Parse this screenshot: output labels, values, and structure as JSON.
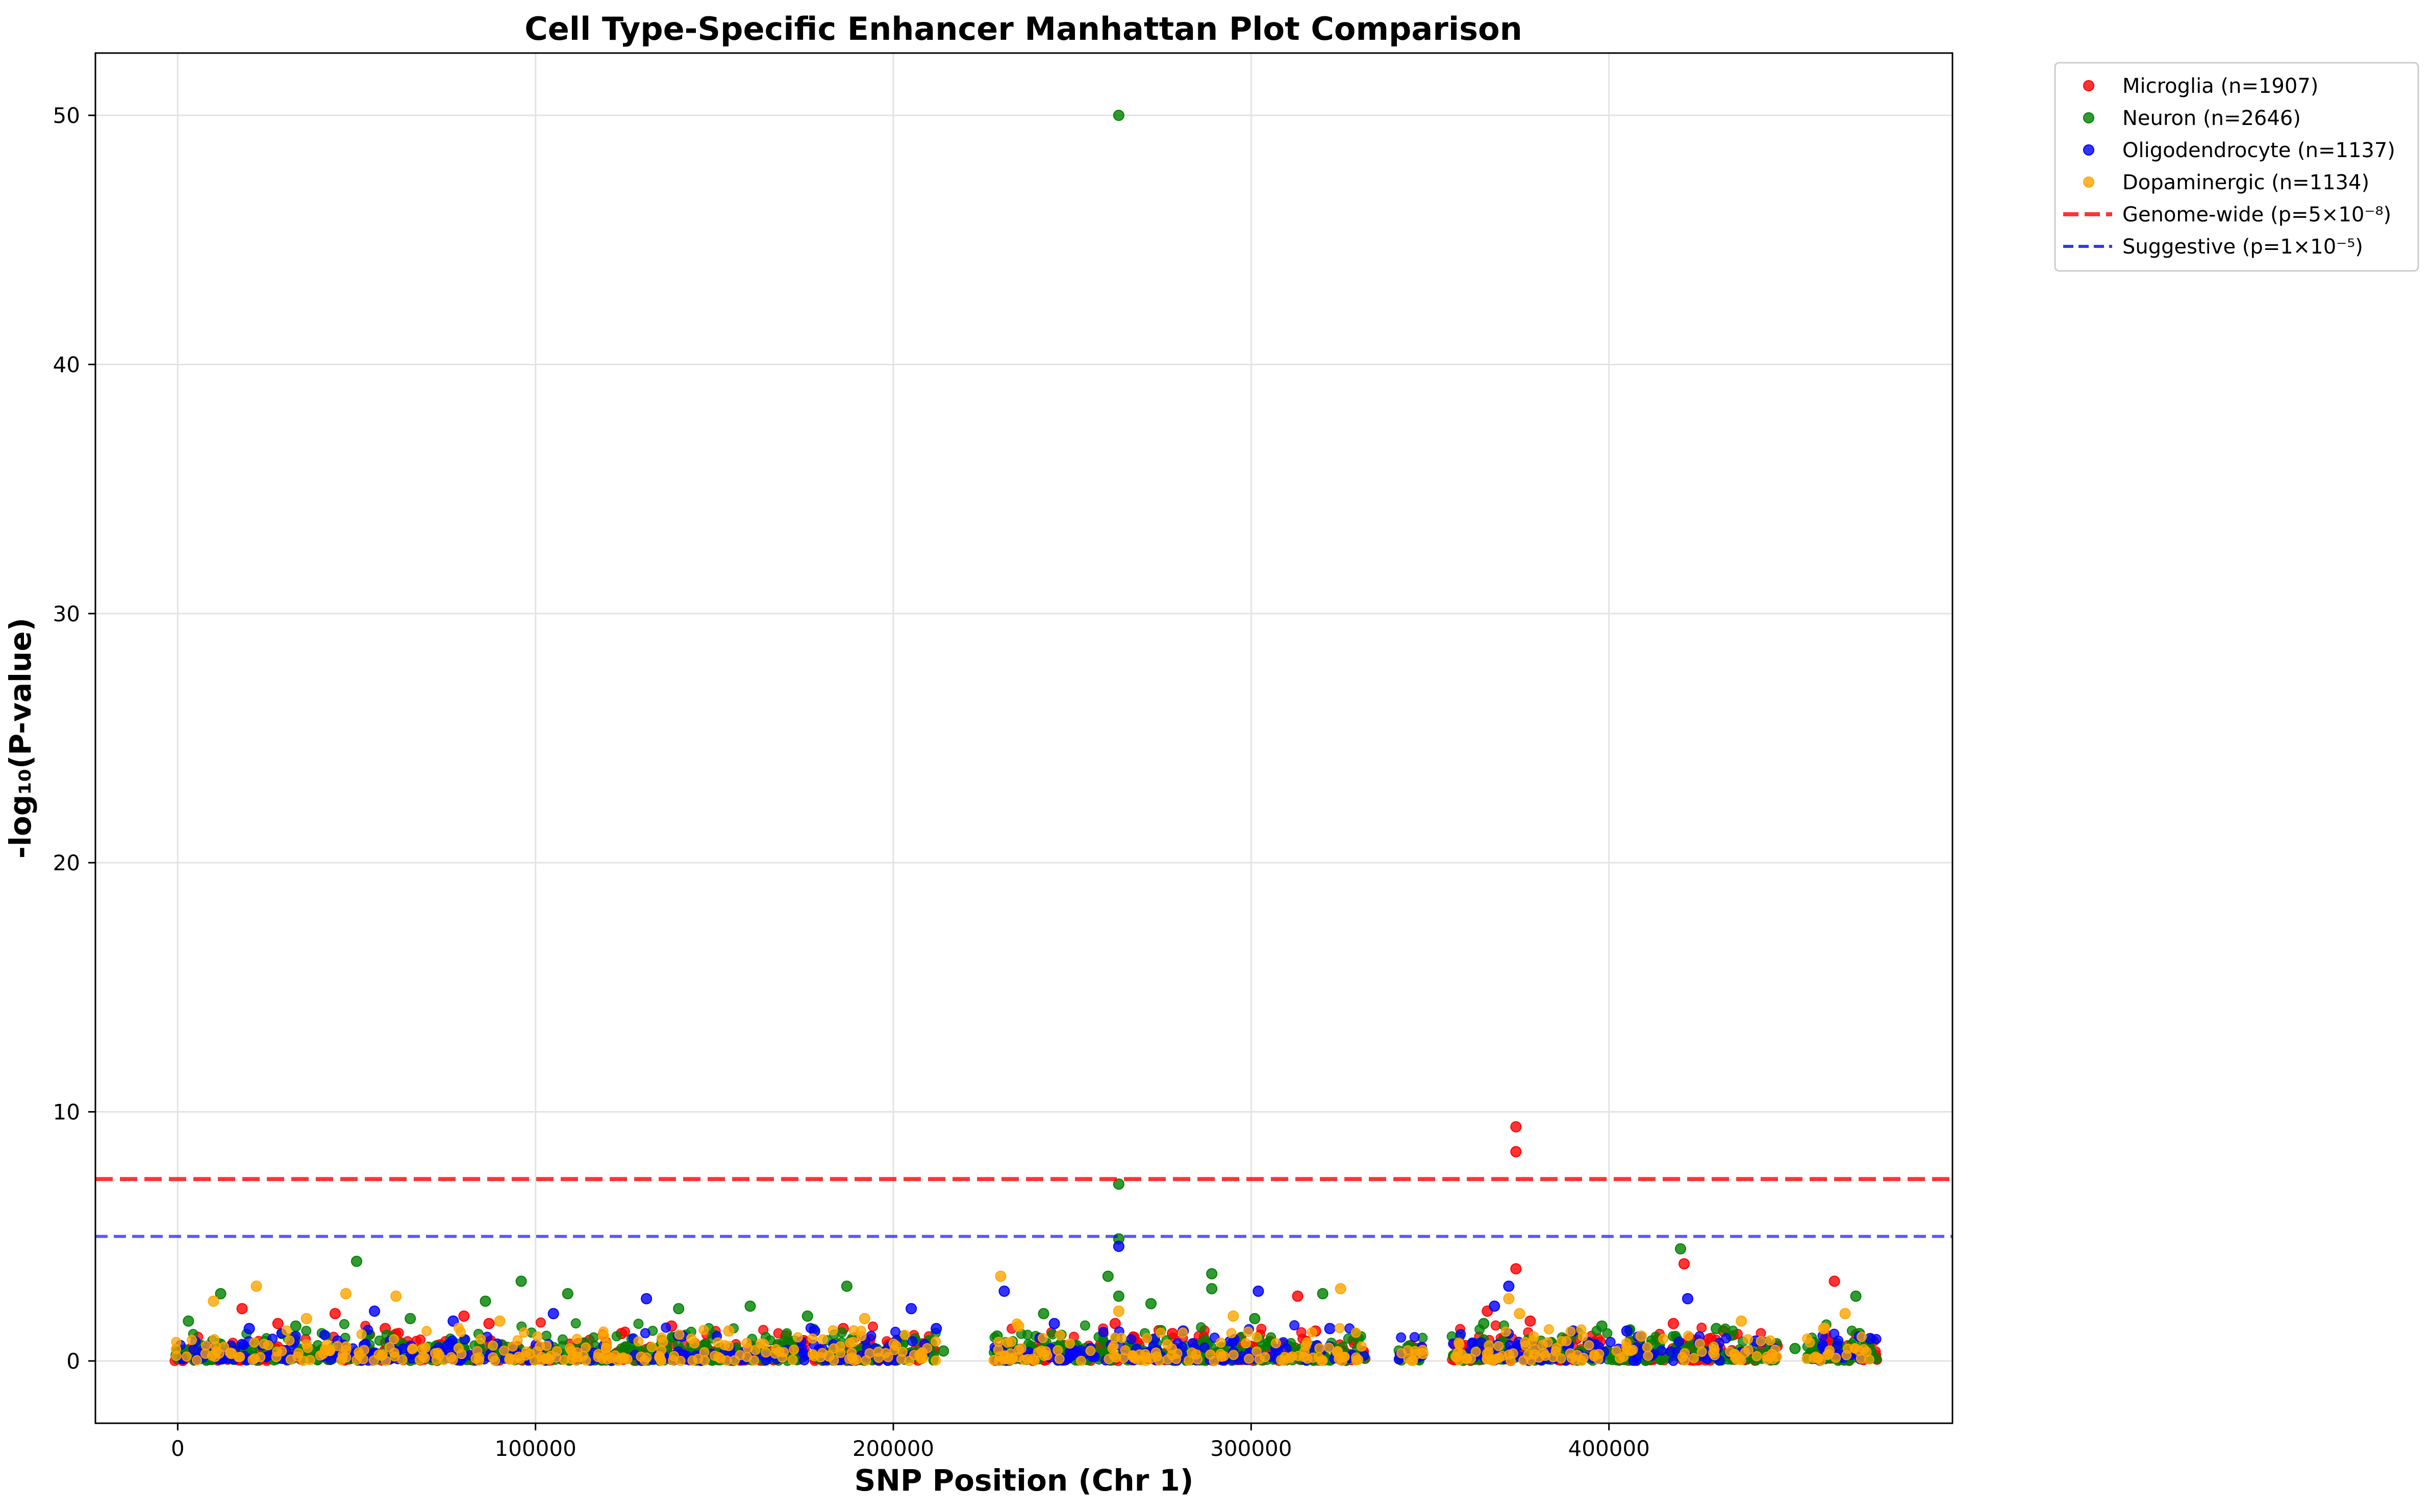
{
  "chart_data": {
    "type": "scatter",
    "title": "Cell Type-Specific Enhancer Manhattan Plot Comparison",
    "xlabel": "SNP Position (Chr 1)",
    "ylabel": "-log₁₀(P-value)",
    "xlim": [
      -23000,
      496000
    ],
    "ylim": [
      -2.5,
      52.5
    ],
    "xticks": [
      0,
      100000,
      200000,
      300000,
      400000
    ],
    "yticks": [
      0,
      10,
      20,
      30,
      40,
      50
    ],
    "grid": true,
    "legend_position": "outside-top-right",
    "series": [
      {
        "name": "Microglia (n=1907)",
        "color": "#ff0000",
        "count": 1907,
        "points": [
          [
            374000,
            9.4
          ],
          [
            374000,
            8.4
          ],
          [
            374000,
            3.7
          ],
          [
            313000,
            2.6
          ],
          [
            421000,
            3.9
          ],
          [
            463000,
            3.2
          ],
          [
            18000,
            2.1
          ],
          [
            28000,
            1.5
          ],
          [
            44000,
            1.9
          ],
          [
            58000,
            1.3
          ],
          [
            80000,
            1.8
          ],
          [
            87000,
            1.5
          ],
          [
            112000,
            0.7
          ],
          [
            124000,
            1.1
          ],
          [
            138000,
            1.4
          ],
          [
            170000,
            1.0
          ],
          [
            186000,
            1.3
          ],
          [
            209000,
            0.6
          ],
          [
            243000,
            0.4
          ],
          [
            249000,
            0.6
          ],
          [
            254000,
            0.3
          ],
          [
            262000,
            1.5
          ],
          [
            278000,
            1.1
          ],
          [
            297000,
            0.9
          ],
          [
            318000,
            1.2
          ],
          [
            366000,
            2.0
          ],
          [
            378000,
            1.6
          ],
          [
            391000,
            0.9
          ],
          [
            418000,
            1.5
          ],
          [
            432000,
            1.2
          ],
          [
            447000,
            0.6
          ]
        ]
      },
      {
        "name": "Neuron (n=2646)",
        "color": "#008000",
        "count": 2646,
        "points": [
          [
            263000,
            50.0
          ],
          [
            263000,
            7.1
          ],
          [
            263000,
            4.9
          ],
          [
            263000,
            2.6
          ],
          [
            50000,
            4.0
          ],
          [
            289000,
            3.5
          ],
          [
            289000,
            2.9
          ],
          [
            96000,
            3.2
          ],
          [
            109000,
            2.7
          ],
          [
            12000,
            2.7
          ],
          [
            187000,
            3.0
          ],
          [
            320000,
            2.7
          ],
          [
            420000,
            4.5
          ],
          [
            469000,
            2.6
          ],
          [
            260000,
            3.4
          ],
          [
            242000,
            1.9
          ],
          [
            229000,
            1.0
          ],
          [
            3000,
            1.6
          ],
          [
            33000,
            1.4
          ],
          [
            65000,
            1.7
          ],
          [
            86000,
            2.4
          ],
          [
            140000,
            2.1
          ],
          [
            160000,
            2.2
          ],
          [
            176000,
            1.8
          ],
          [
            214000,
            0.4
          ],
          [
            272000,
            2.3
          ],
          [
            301000,
            1.7
          ],
          [
            330000,
            0.9
          ],
          [
            365000,
            1.5
          ],
          [
            398000,
            1.4
          ],
          [
            430000,
            1.3
          ],
          [
            452000,
            0.5
          ],
          [
            470000,
            1.1
          ]
        ]
      },
      {
        "name": "Oligodendrocyte (n=1137)",
        "color": "#0000ff",
        "count": 1137,
        "points": [
          [
            263000,
            4.6
          ],
          [
            231000,
            2.8
          ],
          [
            302000,
            2.8
          ],
          [
            372000,
            3.0
          ],
          [
            422000,
            2.5
          ],
          [
            20000,
            1.3
          ],
          [
            55000,
            2.0
          ],
          [
            77000,
            1.6
          ],
          [
            105000,
            1.9
          ],
          [
            131000,
            2.5
          ],
          [
            141000,
            1.0
          ],
          [
            178000,
            1.2
          ],
          [
            205000,
            2.1
          ],
          [
            212000,
            1.3
          ],
          [
            245000,
            1.5
          ],
          [
            281000,
            1.2
          ],
          [
            322000,
            1.3
          ],
          [
            343000,
            0.3
          ],
          [
            368000,
            2.2
          ],
          [
            390000,
            1.2
          ],
          [
            405000,
            1.2
          ],
          [
            441000,
            0.8
          ],
          [
            473000,
            0.9
          ],
          [
            7000,
            0.4
          ]
        ]
      },
      {
        "name": "Dopaminergic (n=1134)",
        "color": "#ffa500",
        "count": 1134,
        "points": [
          [
            22000,
            3.0
          ],
          [
            47000,
            2.7
          ],
          [
            230000,
            3.4
          ],
          [
            325000,
            2.9
          ],
          [
            372000,
            2.5
          ],
          [
            466000,
            1.9
          ],
          [
            10000,
            2.4
          ],
          [
            36000,
            1.7
          ],
          [
            61000,
            2.6
          ],
          [
            90000,
            1.6
          ],
          [
            119000,
            1.0
          ],
          [
            154000,
            1.2
          ],
          [
            192000,
            1.7
          ],
          [
            235000,
            1.4
          ],
          [
            263000,
            2.0
          ],
          [
            295000,
            1.8
          ],
          [
            348000,
            0.3
          ],
          [
            375000,
            1.9
          ],
          [
            409000,
            1.0
          ],
          [
            437000,
            1.6
          ],
          [
            460000,
            1.3
          ],
          [
            15000,
            0.3
          ],
          [
            182000,
            0.2
          ]
        ]
      }
    ],
    "reference_lines": [
      {
        "name": "Genome-wide (p=5×10⁻⁸)",
        "y": 7.3,
        "color": "#ff0000",
        "style": "dashed"
      },
      {
        "name": "Suggestive (p=1×10⁻⁵)",
        "y": 5.0,
        "color": "#0000ff",
        "style": "dashed"
      }
    ],
    "clusters": [
      [
        -1000,
        212000
      ],
      [
        228000,
        332000
      ],
      [
        341000,
        348000
      ],
      [
        356000,
        447000
      ],
      [
        455000,
        475000
      ]
    ]
  }
}
